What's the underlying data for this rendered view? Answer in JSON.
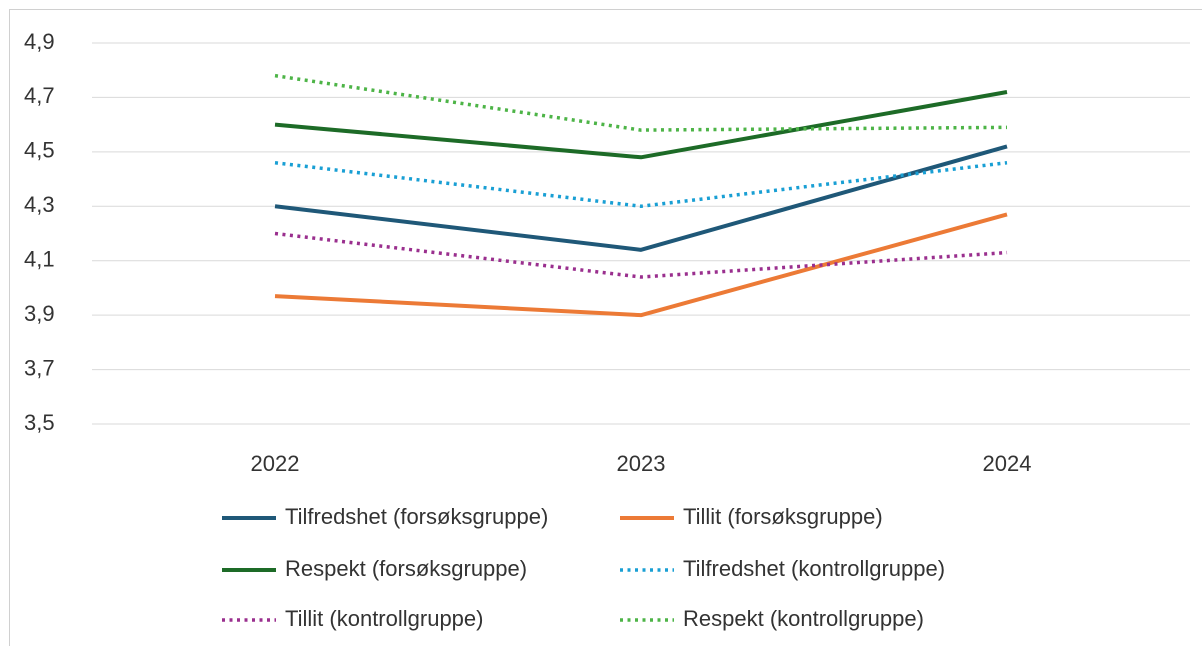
{
  "chart_data": {
    "type": "line",
    "categories": [
      "2022",
      "2023",
      "2024"
    ],
    "series": [
      {
        "name": "Tilfredshet (forsøksgruppe)",
        "color": "#1f5878",
        "style": "solid",
        "values": [
          4.3,
          4.14,
          4.52
        ]
      },
      {
        "name": "Tillit (forsøksgruppe)",
        "color": "#ec7a36",
        "style": "solid",
        "values": [
          3.97,
          3.9,
          4.27
        ]
      },
      {
        "name": "Respekt (forsøksgruppe)",
        "color": "#1d6b27",
        "style": "solid",
        "values": [
          4.6,
          4.48,
          4.72
        ]
      },
      {
        "name": "Tilfredshet (kontrollgruppe)",
        "color": "#199fd4",
        "style": "dotted",
        "values": [
          4.46,
          4.3,
          4.46
        ]
      },
      {
        "name": "Tillit (kontrollgruppe)",
        "color": "#9a2f8e",
        "style": "dotted",
        "values": [
          4.2,
          4.04,
          4.13
        ]
      },
      {
        "name": "Respekt (kontrollgruppe)",
        "color": "#4db447",
        "style": "dotted",
        "values": [
          4.78,
          4.58,
          4.59
        ]
      }
    ],
    "ylim": [
      3.5,
      4.9
    ],
    "yticks": [
      {
        "value": 3.5,
        "label": "3,5"
      },
      {
        "value": 3.7,
        "label": "3,7"
      },
      {
        "value": 3.9,
        "label": "3,9"
      },
      {
        "value": 4.1,
        "label": "4,1"
      },
      {
        "value": 4.3,
        "label": "4,3"
      },
      {
        "value": 4.5,
        "label": "4,5"
      },
      {
        "value": 4.7,
        "label": "4,7"
      },
      {
        "value": 4.9,
        "label": "4,9"
      }
    ],
    "grid": true,
    "legend": "bottom"
  }
}
